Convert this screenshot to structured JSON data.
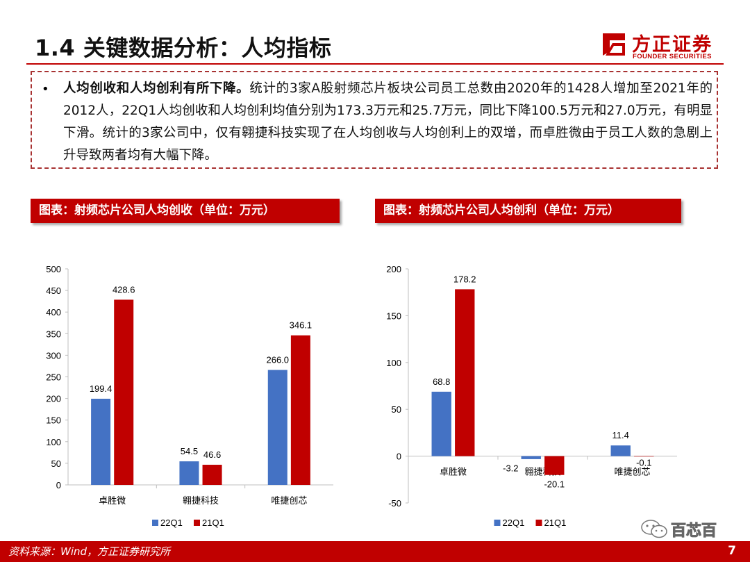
{
  "header": {
    "title": "1.4 关键数据分析：人均指标"
  },
  "logo": {
    "cn": "方正证券",
    "en": "FOUNDER SECURITIES",
    "brand_color": "#c00000"
  },
  "summary": {
    "bullet": "•",
    "lead": "人均创收和人均创利有所下降。",
    "body": "统计的3家A股射频芯片板块公司员工总数由2020年的1428人增加至2021年的2012人，22Q1人均创收和人均创利均值分别为173.3万元和25.7万元，同比下降100.5万元和27.0万元，有明显下滑。统计的3家公司中，仅有翱捷科技实现了在人均创收与人均创利上的双增，而卓胜微由于员工人数的急剧上升导致两者均有大幅下降。"
  },
  "charts": {
    "left_title": "图表：射频芯片公司人均创收（单位：万元）",
    "right_title": "图表：射频芯片公司人均创利（单位：万元）"
  },
  "chart_data": [
    {
      "type": "bar",
      "title": "图表：射频芯片公司人均创收（单位：万元）",
      "categories": [
        "卓胜微",
        "翱捷科技",
        "唯捷创芯"
      ],
      "series": [
        {
          "name": "22Q1",
          "values": [
            199.4,
            54.5,
            266.0
          ],
          "labels": [
            "199.4",
            "54.5",
            "266.0"
          ],
          "color": "#4472c4"
        },
        {
          "name": "21Q1",
          "values": [
            428.6,
            46.6,
            346.1
          ],
          "labels": [
            "428.6",
            "46.6",
            "346.1"
          ],
          "color": "#c00000"
        }
      ],
      "ylim": [
        0,
        500
      ],
      "yticks": [
        0,
        50,
        100,
        150,
        200,
        250,
        300,
        350,
        400,
        450,
        500
      ],
      "legend": "bottom",
      "grid": false
    },
    {
      "type": "bar",
      "title": "图表：射频芯片公司人均创利（单位：万元）",
      "categories": [
        "卓胜微",
        "翱捷科技",
        "唯捷创芯"
      ],
      "series": [
        {
          "name": "22Q1",
          "values": [
            68.8,
            -3.2,
            11.4
          ],
          "labels": [
            "68.8",
            "-3.2",
            "11.4"
          ],
          "color": "#4472c4"
        },
        {
          "name": "21Q1",
          "values": [
            178.2,
            -20.1,
            -0.1
          ],
          "labels": [
            "178.2",
            "-20.1",
            "-0.1"
          ],
          "color": "#c00000"
        }
      ],
      "ylim": [
        -50,
        200
      ],
      "yticks": [
        -50,
        0,
        50,
        100,
        150,
        200
      ],
      "legend": "bottom",
      "grid": false
    }
  ],
  "footer": {
    "source": "资料来源：Wind，方正证券研究所",
    "page": "7"
  },
  "watermark": {
    "text": "百芯百",
    "icon": "wechat-icon"
  }
}
